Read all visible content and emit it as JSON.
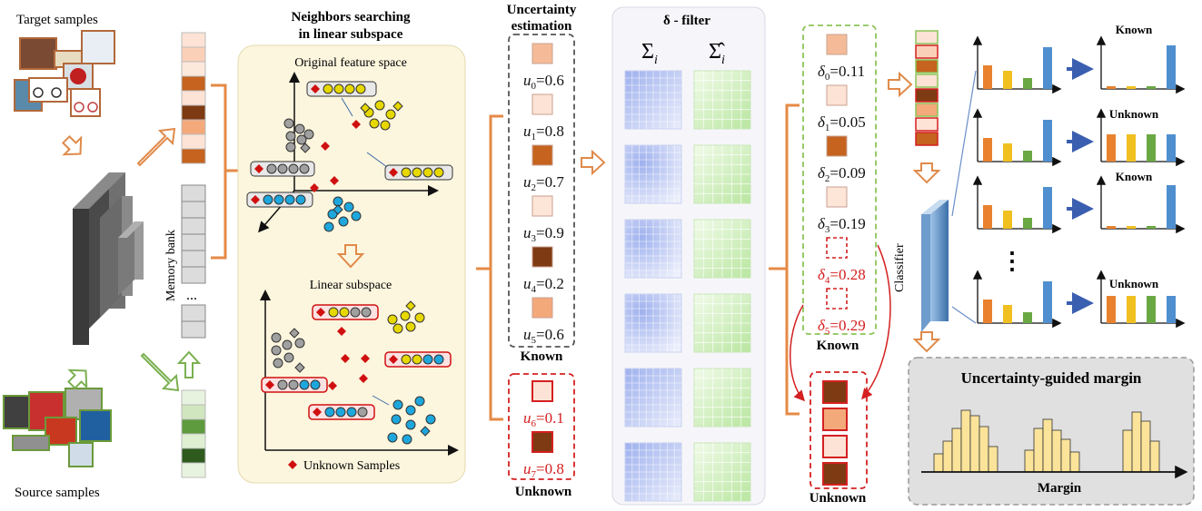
{
  "labels": {
    "target_samples": "Target samples",
    "source_samples": "Source samples",
    "memory_bank": "Memory bank",
    "memory_dots": "...",
    "neighbors_title_1": "Neighbors searching",
    "neighbors_title_2": "in linear subspace",
    "original_space": "Original feature space",
    "linear_subspace": "Linear subspace",
    "unknown_samples_legend": "Unknown Samples",
    "uncertainty_title_1": "Uncertainty",
    "uncertainty_title_2": "estimation",
    "known_label": "Known",
    "unknown_label": "Unknown",
    "delta_filter_title": "δ - filter",
    "sigma": "Σ",
    "sigma_hat": "Σ̂",
    "sigma_sub": "i",
    "classifier": "Classifier",
    "known_out_1": "Known",
    "unknown_out_1": "Unknown",
    "known_out_2": "Known",
    "unknown_out_2": "Unknown",
    "vertical_dots": "⋮",
    "margin_title": "Uncertainty-guided margin",
    "margin_axis": "Margin"
  },
  "uncertainty_known": [
    {
      "var": "u",
      "sub": "0",
      "val": "=0.6",
      "color": "#f5bb98"
    },
    {
      "var": "u",
      "sub": "1",
      "val": "=0.8",
      "color": "#fde3d5"
    },
    {
      "var": "u",
      "sub": "2",
      "val": "=0.7",
      "color": "#c5631f"
    },
    {
      "var": "u",
      "sub": "3",
      "val": "=0.9",
      "color": "#fde5d8"
    },
    {
      "var": "u",
      "sub": "4",
      "val": "=0.2",
      "color": "#7e3a12"
    },
    {
      "var": "u",
      "sub": "5",
      "val": "=0.6",
      "color": "#f4a97b"
    }
  ],
  "uncertainty_unknown": [
    {
      "var": "u",
      "sub": "6",
      "val": "=0.1",
      "color": "#fde3d5"
    },
    {
      "var": "u",
      "sub": "7",
      "val": "=0.8",
      "color": "#7e3a12"
    }
  ],
  "delta_known": [
    {
      "var": "δ",
      "sub": "0",
      "val": "=0.11",
      "color": "#f5bb98"
    },
    {
      "var": "δ",
      "sub": "1",
      "val": "=0.05",
      "color": "#fde3d5"
    },
    {
      "var": "δ",
      "sub": "2",
      "val": "=0.09",
      "color": "#c5631f"
    },
    {
      "var": "δ",
      "sub": "3",
      "val": "=0.19",
      "color": "#fde5d8"
    }
  ],
  "delta_unknown": [
    {
      "var": "δ",
      "sub": "4",
      "val": "=0.28"
    },
    {
      "var": "δ",
      "sub": "5",
      "val": "=0.29"
    }
  ],
  "colors": {
    "orange_arrow": "#e08a4a",
    "green_arrow": "#7ab050",
    "bracket": "#e58a46",
    "known_dash": "#8cc458",
    "unknown_dash": "#d42020",
    "blue_grid": "#aab8f0",
    "green_grid": "#c8eab0",
    "bar_orange": "#e8822e",
    "bar_yellow": "#f0c020",
    "bar_green": "#6aa843",
    "bar_blue": "#4f8fd0",
    "hist_fill": "#fbe39a"
  }
}
